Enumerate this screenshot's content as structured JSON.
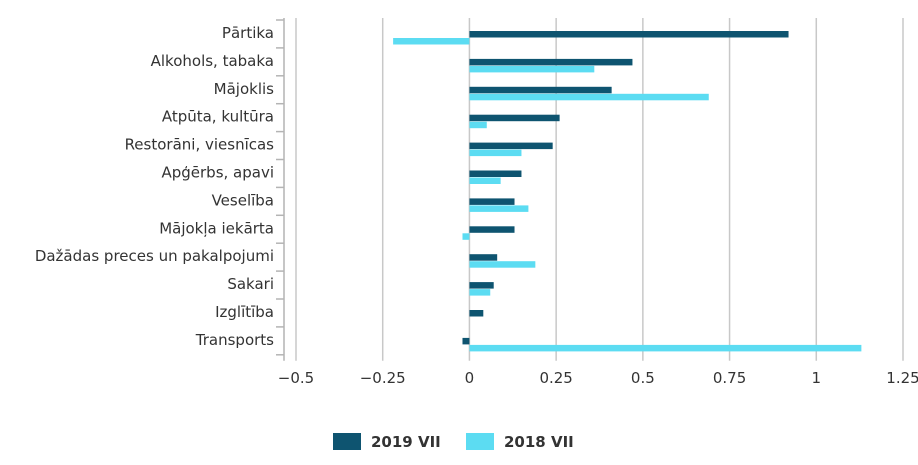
{
  "chart_data": {
    "type": "bar",
    "orientation": "horizontal",
    "categories": [
      "Pārtika",
      "Alkohols, tabaka",
      "Mājoklis",
      "Atpūta, kultūra",
      "Restorāni, viesnīcas",
      "Apģērbs, apavi",
      "Veselība",
      "Mājokļa iekārta",
      "Dažādas preces un pakalpojumi",
      "Sakari",
      "Izglītība",
      "Transports"
    ],
    "series": [
      {
        "name": "2019 VII",
        "color": "#0e5470",
        "values": [
          0.92,
          0.47,
          0.41,
          0.26,
          0.24,
          0.15,
          0.13,
          0.13,
          0.08,
          0.07,
          0.04,
          -0.02
        ]
      },
      {
        "name": "2018 VII",
        "color": "#5cdcf2",
        "values": [
          -0.22,
          0.36,
          0.69,
          0.05,
          0.15,
          0.09,
          0.17,
          -0.02,
          0.19,
          0.06,
          0.0,
          1.13
        ]
      }
    ],
    "xlim": [
      -0.5,
      1.25
    ],
    "xticks": [
      -0.5,
      -0.25,
      0,
      0.25,
      0.5,
      0.75,
      1,
      1.25
    ],
    "xtick_labels": [
      "−0.5",
      "−0.25",
      "0",
      "0.25",
      "0.5",
      "0.75",
      "1",
      "1.25"
    ],
    "grid": true,
    "legend_position": "bottom-center",
    "title": "",
    "xlabel": "",
    "ylabel": ""
  }
}
